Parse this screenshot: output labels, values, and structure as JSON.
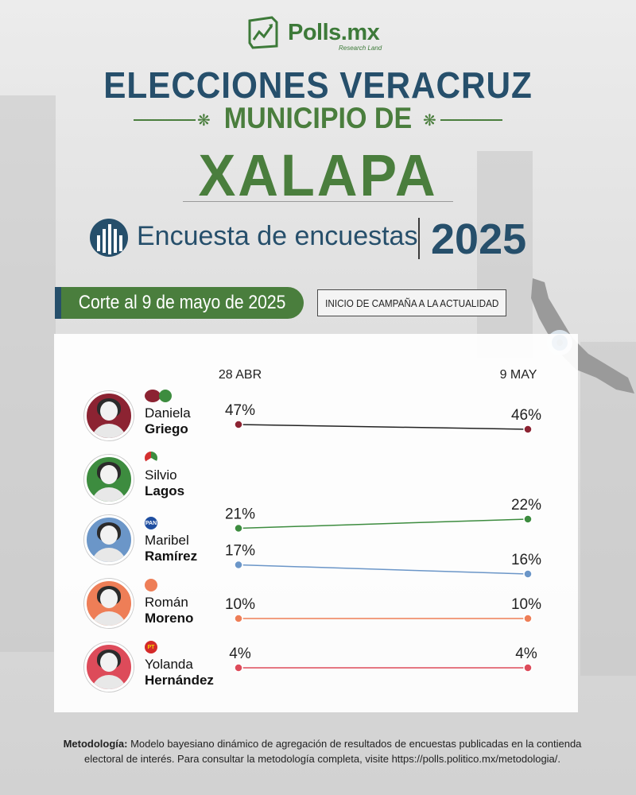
{
  "brand": {
    "name": "Polls.mx",
    "sub": "Research Land"
  },
  "title": {
    "line1": "ELECCIONES VERACRUZ",
    "line2": "MUNICIPIO DE",
    "line3": "XALAPA"
  },
  "survey": {
    "label": "Encuesta de encuestas",
    "year": "2025"
  },
  "cutoff": "Corte al 9 de mayo de 2025",
  "period": "INICIO DE CAMPAÑA A LA ACTUALIDAD",
  "colors": {
    "navy": "#264f6b",
    "green": "#4a7e3d"
  },
  "chart_data": {
    "type": "line",
    "x": [
      "28 ABR",
      "9 MAY"
    ],
    "series": [
      {
        "name": "Daniela Griego",
        "first": "Daniela",
        "last": "Griego",
        "party": "MORENA-PVEM",
        "color": "#8c2332",
        "values": [
          47,
          46
        ],
        "labels": [
          "47%",
          "46%"
        ]
      },
      {
        "name": "Silvio Lagos",
        "first": "Silvio",
        "last": "Lagos",
        "party": "PRI",
        "color": "#3d8c3f",
        "values": [
          21,
          22
        ],
        "labels": [
          "21%",
          "22%"
        ]
      },
      {
        "name": "Maribel Ramírez",
        "first": "Maribel",
        "last": "Ramírez",
        "party": "PAN",
        "color": "#6b96c8",
        "values": [
          17,
          16
        ],
        "labels": [
          "17%",
          "16%"
        ]
      },
      {
        "name": "Román Moreno",
        "first": "Román",
        "last": "Moreno",
        "party": "MC",
        "color": "#ee7e57",
        "values": [
          10,
          10
        ],
        "labels": [
          "10%",
          "10%"
        ]
      },
      {
        "name": "Yolanda Hernández",
        "first": "Yolanda",
        "last": "Hernández",
        "party": "PT",
        "color": "#dd4b5a",
        "values": [
          4,
          4
        ],
        "labels": [
          "4%",
          "4%"
        ]
      }
    ]
  },
  "footer": {
    "label": "Metodología:",
    "text": "Modelo bayesiano dinámico de agregación de resultados de encuestas publicadas en la contienda electoral de interés. Para consultar la metodología completa, visite https://polls.politico.mx/metodologia/."
  }
}
